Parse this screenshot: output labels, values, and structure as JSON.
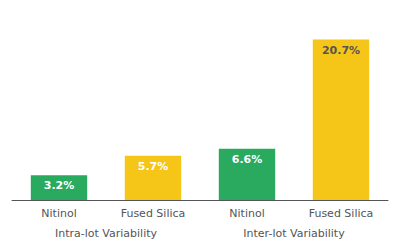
{
  "chart_data": {
    "type": "bar",
    "groups": [
      {
        "label": "Intra-lot Variability",
        "categories": [
          "Nitinol",
          "Fused Silica"
        ],
        "values": [
          3.2,
          5.7
        ],
        "value_labels": [
          "3.2%",
          "5.7%"
        ],
        "colors": [
          "#2aaa5e",
          "#f5c518"
        ],
        "label_colors": [
          "white",
          "white"
        ]
      },
      {
        "label": "Inter-lot Variability",
        "categories": [
          "Nitinol",
          "Fused Silica"
        ],
        "values": [
          6.6,
          20.7
        ],
        "value_labels": [
          "6.6%",
          "20.7%"
        ],
        "colors": [
          "#2aaa5e",
          "#f5c518"
        ],
        "label_colors": [
          "white",
          "#555555"
        ]
      }
    ],
    "ylim": [
      0,
      24
    ],
    "data_labels": true,
    "grid": false,
    "tick_labels": "x"
  }
}
